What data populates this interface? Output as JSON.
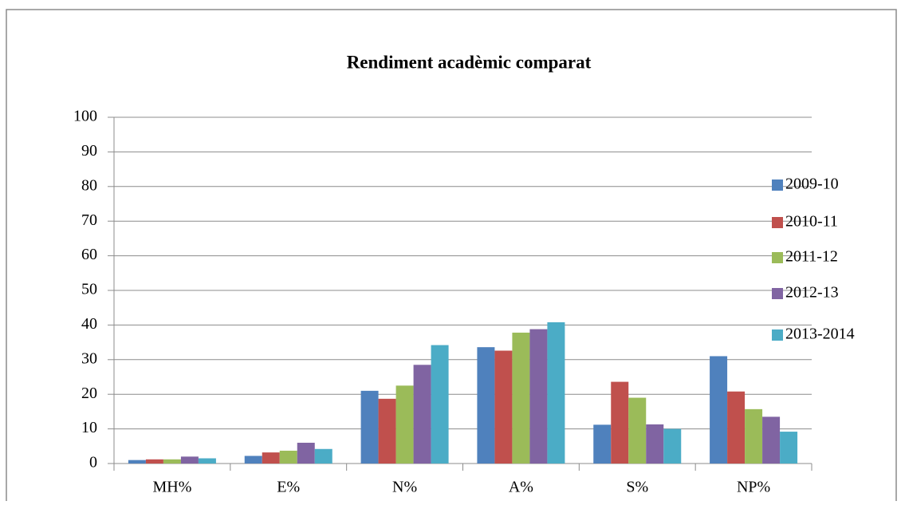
{
  "chart_data": {
    "type": "bar",
    "title": "Rendiment acadèmic comparat",
    "categories": [
      "MH%",
      "E%",
      "N%",
      "A%",
      "S%",
      "NP%"
    ],
    "series": [
      {
        "name": "2009-10",
        "color": "#4f81bd",
        "values": [
          1,
          2.2,
          21,
          33.6,
          11.2,
          31
        ]
      },
      {
        "name": "2010-11",
        "color": "#c0504d",
        "values": [
          1.2,
          3.2,
          18.7,
          32.6,
          23.6,
          20.8
        ]
      },
      {
        "name": "2011-12",
        "color": "#9bbb59",
        "values": [
          1.2,
          3.7,
          22.5,
          37.8,
          19,
          15.7
        ]
      },
      {
        "name": "2012-13",
        "color": "#8064a2",
        "values": [
          2,
          6,
          28.5,
          38.8,
          11.3,
          13.5
        ]
      },
      {
        "name": "2013-2014",
        "color": "#4bacc6",
        "values": [
          1.5,
          4.2,
          34.2,
          40.8,
          10,
          9.2
        ]
      }
    ],
    "ylim": [
      0,
      100
    ],
    "yticks": [
      0,
      10,
      20,
      30,
      40,
      50,
      60,
      70,
      80,
      90,
      100
    ],
    "grid": true,
    "legend": "right"
  }
}
